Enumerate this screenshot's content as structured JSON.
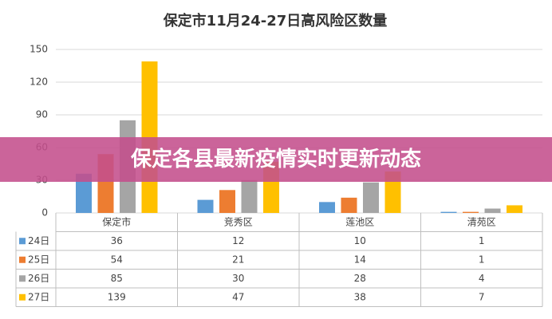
{
  "chart_data": {
    "type": "bar",
    "title": "保定市11月24-27日高风险区数量",
    "categories": [
      "保定市",
      "竞秀区",
      "莲池区",
      "清苑区"
    ],
    "series": [
      {
        "name": "24日",
        "color": "#5b9bd5",
        "values": [
          36,
          12,
          10,
          1
        ]
      },
      {
        "name": "25日",
        "color": "#ed7d31",
        "values": [
          54,
          21,
          14,
          1
        ]
      },
      {
        "name": "26日",
        "color": "#a5a5a5",
        "values": [
          85,
          30,
          28,
          4
        ]
      },
      {
        "name": "27日",
        "color": "#ffc000",
        "values": [
          139,
          47,
          38,
          7
        ]
      }
    ],
    "ylim": [
      0,
      150
    ],
    "yticks": [
      0,
      30,
      60,
      90,
      120,
      150
    ],
    "grid": true,
    "data_table": true
  },
  "banner": "保定各县最新疫情实时更新动态"
}
